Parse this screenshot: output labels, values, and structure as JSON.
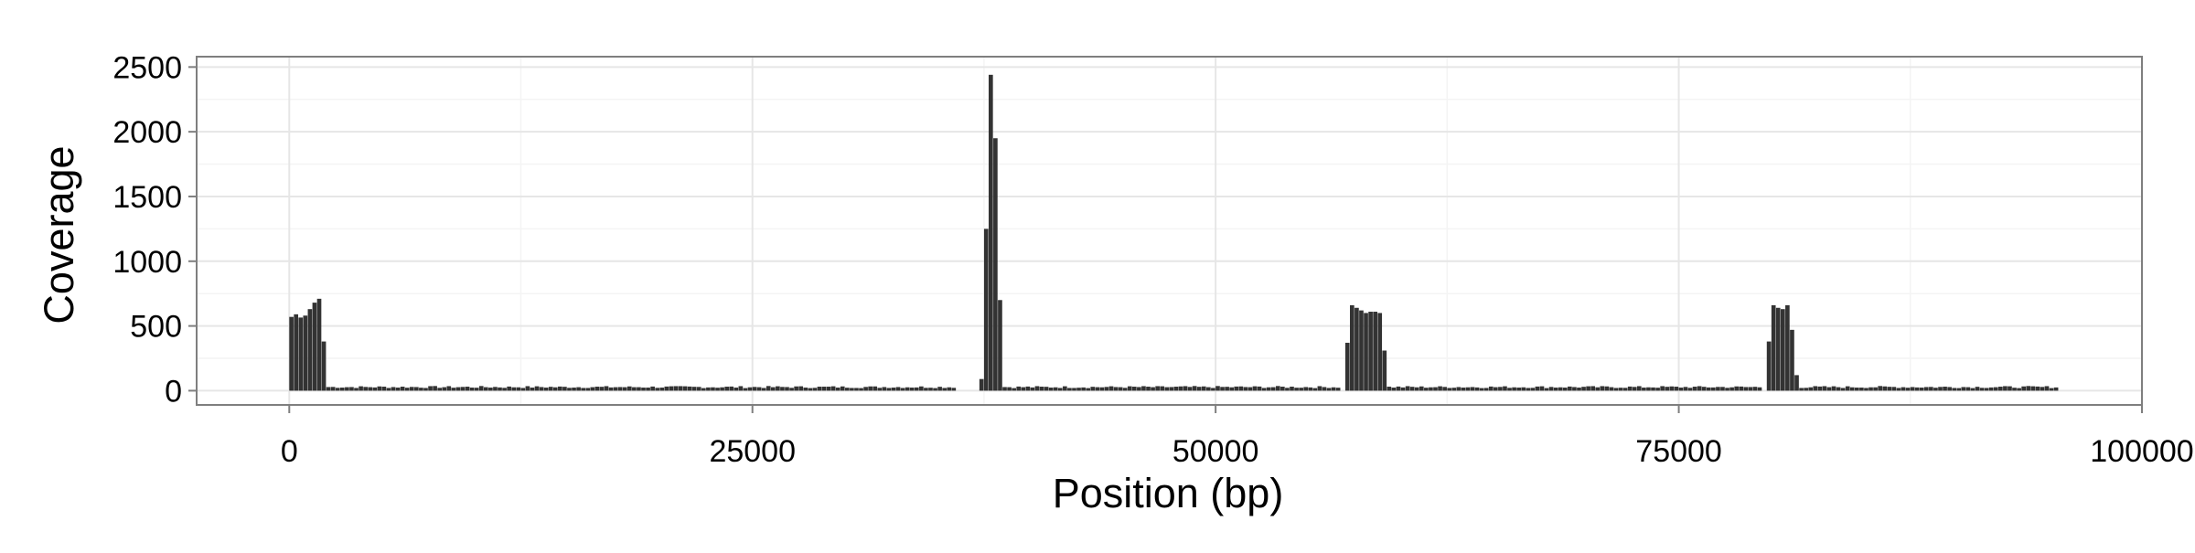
{
  "chart_data": {
    "type": "bar",
    "title": "",
    "xlabel": "Position (bp)",
    "ylabel": "Coverage",
    "xlim": [
      -5000,
      100000
    ],
    "ylim": [
      -110,
      2580
    ],
    "x_ticks": [
      0,
      25000,
      50000,
      75000,
      100000
    ],
    "x_tick_labels": [
      "0",
      "25000",
      "50000",
      "75000",
      "100000"
    ],
    "y_ticks": [
      0,
      500,
      1000,
      1500,
      2000,
      2500
    ],
    "y_tick_labels": [
      "0",
      "500",
      "1000",
      "1500",
      "2000",
      "2500"
    ],
    "grid": true,
    "bin_width_bp": 250,
    "series": [
      {
        "color": "#333333",
        "values": [
          [
            0,
            570
          ],
          [
            250,
            590
          ],
          [
            500,
            565
          ],
          [
            750,
            580
          ],
          [
            1000,
            630
          ],
          [
            1250,
            680
          ],
          [
            1500,
            710
          ],
          [
            1750,
            380
          ],
          [
            37250,
            90
          ],
          [
            37500,
            1250
          ],
          [
            37750,
            2440
          ],
          [
            38000,
            1950
          ],
          [
            38250,
            700
          ],
          [
            57000,
            370
          ],
          [
            57250,
            660
          ],
          [
            57500,
            640
          ],
          [
            57750,
            620
          ],
          [
            58000,
            600
          ],
          [
            58250,
            610
          ],
          [
            58500,
            610
          ],
          [
            58750,
            600
          ],
          [
            59000,
            310
          ],
          [
            79750,
            380
          ],
          [
            80000,
            660
          ],
          [
            80250,
            640
          ],
          [
            80500,
            630
          ],
          [
            80750,
            660
          ],
          [
            81000,
            470
          ],
          [
            81250,
            120
          ]
        ],
        "baseline": {
          "ranges": [
            [
              2000,
              36000
            ],
            [
              38500,
              56750
            ],
            [
              59250,
              79500
            ],
            [
              81500,
              95500
            ]
          ],
          "typical_value": 28
        }
      }
    ]
  }
}
